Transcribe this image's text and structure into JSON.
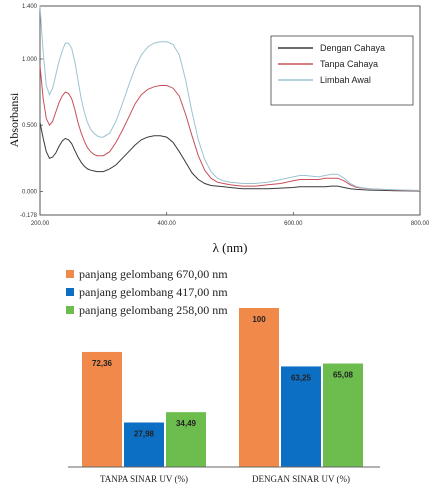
{
  "chart_data": [
    {
      "type": "line",
      "xlabel": "λ (nm)",
      "ylabel": "Absorbansi",
      "xlim": [
        200,
        800
      ],
      "ylim": [
        -0.178,
        1.4
      ],
      "x_ticks": [
        "200.00",
        "400.00",
        "600.00",
        "800.00"
      ],
      "y_ticks": [
        "1.400",
        "1.000",
        "0.500",
        "0.000",
        "-0.178"
      ],
      "y_tick_values": [
        1.4,
        1.0,
        0.5,
        0.0,
        -0.178
      ],
      "x_tick_values": [
        200,
        400,
        600,
        800
      ],
      "legend_position": "top-right",
      "x": [
        200,
        205,
        210,
        215,
        220,
        225,
        230,
        235,
        240,
        245,
        250,
        255,
        260,
        265,
        270,
        275,
        280,
        285,
        290,
        295,
        300,
        310,
        320,
        330,
        340,
        350,
        360,
        370,
        380,
        390,
        400,
        410,
        420,
        430,
        440,
        450,
        460,
        470,
        480,
        490,
        500,
        510,
        520,
        530,
        540,
        550,
        560,
        580,
        600,
        610,
        620,
        630,
        640,
        650,
        660,
        670,
        680,
        690,
        700,
        720,
        740,
        760,
        780,
        800
      ],
      "series": [
        {
          "name": "Dengan Cahaya",
          "color": "#3a3a3a",
          "values": [
            0.52,
            0.4,
            0.3,
            0.25,
            0.26,
            0.29,
            0.34,
            0.38,
            0.4,
            0.39,
            0.36,
            0.31,
            0.26,
            0.22,
            0.19,
            0.17,
            0.16,
            0.155,
            0.15,
            0.15,
            0.15,
            0.17,
            0.2,
            0.25,
            0.3,
            0.35,
            0.39,
            0.41,
            0.42,
            0.42,
            0.41,
            0.37,
            0.3,
            0.22,
            0.14,
            0.09,
            0.06,
            0.045,
            0.04,
            0.035,
            0.03,
            0.025,
            0.02,
            0.02,
            0.02,
            0.02,
            0.02,
            0.025,
            0.03,
            0.035,
            0.035,
            0.035,
            0.035,
            0.035,
            0.04,
            0.04,
            0.03,
            0.02,
            0.015,
            0.01,
            0.008,
            0.005,
            0.004,
            0.003
          ]
        },
        {
          "name": "Tanpa Cahaya",
          "color": "#c8505a",
          "values": [
            0.95,
            0.7,
            0.55,
            0.5,
            0.53,
            0.6,
            0.67,
            0.72,
            0.75,
            0.74,
            0.7,
            0.62,
            0.52,
            0.44,
            0.38,
            0.33,
            0.3,
            0.28,
            0.27,
            0.27,
            0.27,
            0.3,
            0.37,
            0.46,
            0.56,
            0.66,
            0.73,
            0.77,
            0.79,
            0.8,
            0.8,
            0.78,
            0.72,
            0.58,
            0.42,
            0.27,
            0.16,
            0.1,
            0.07,
            0.06,
            0.05,
            0.045,
            0.04,
            0.04,
            0.04,
            0.045,
            0.05,
            0.06,
            0.08,
            0.09,
            0.09,
            0.09,
            0.09,
            0.1,
            0.1,
            0.1,
            0.08,
            0.05,
            0.03,
            0.02,
            0.015,
            0.01,
            0.008,
            0.006
          ]
        },
        {
          "name": "Limbah Awal",
          "color": "#9cc3cf",
          "values": [
            1.4,
            1.05,
            0.8,
            0.73,
            0.78,
            0.88,
            0.98,
            1.06,
            1.12,
            1.12,
            1.08,
            0.98,
            0.84,
            0.7,
            0.6,
            0.52,
            0.47,
            0.44,
            0.42,
            0.41,
            0.41,
            0.44,
            0.53,
            0.66,
            0.8,
            0.93,
            1.03,
            1.09,
            1.12,
            1.13,
            1.13,
            1.11,
            1.03,
            0.84,
            0.6,
            0.39,
            0.24,
            0.15,
            0.1,
            0.08,
            0.07,
            0.065,
            0.06,
            0.06,
            0.06,
            0.065,
            0.07,
            0.09,
            0.11,
            0.12,
            0.12,
            0.115,
            0.11,
            0.12,
            0.13,
            0.13,
            0.1,
            0.06,
            0.035,
            0.02,
            0.015,
            0.012,
            0.01,
            0.008
          ]
        }
      ]
    },
    {
      "type": "bar",
      "categories": [
        "TANPA SINAR UV (%)",
        "DENGAN SINAR UV (%)"
      ],
      "ylim": [
        0,
        100
      ],
      "legend_position": "top-left",
      "series": [
        {
          "name": "panjang gelombang 670,00 nm",
          "color": "#f0894a",
          "values": [
            72.36,
            100
          ],
          "labels": [
            "72,36",
            "100"
          ]
        },
        {
          "name": "panjang gelombang 417,00 nm",
          "color": "#0d6fc4",
          "values": [
            27.98,
            63.25
          ],
          "labels": [
            "27,98",
            "63,25"
          ]
        },
        {
          "name": "panjang gelombang 258,00 nm",
          "color": "#6cbd4e",
          "values": [
            34.49,
            65.08
          ],
          "labels": [
            "34,49",
            "65,08"
          ]
        }
      ]
    }
  ]
}
